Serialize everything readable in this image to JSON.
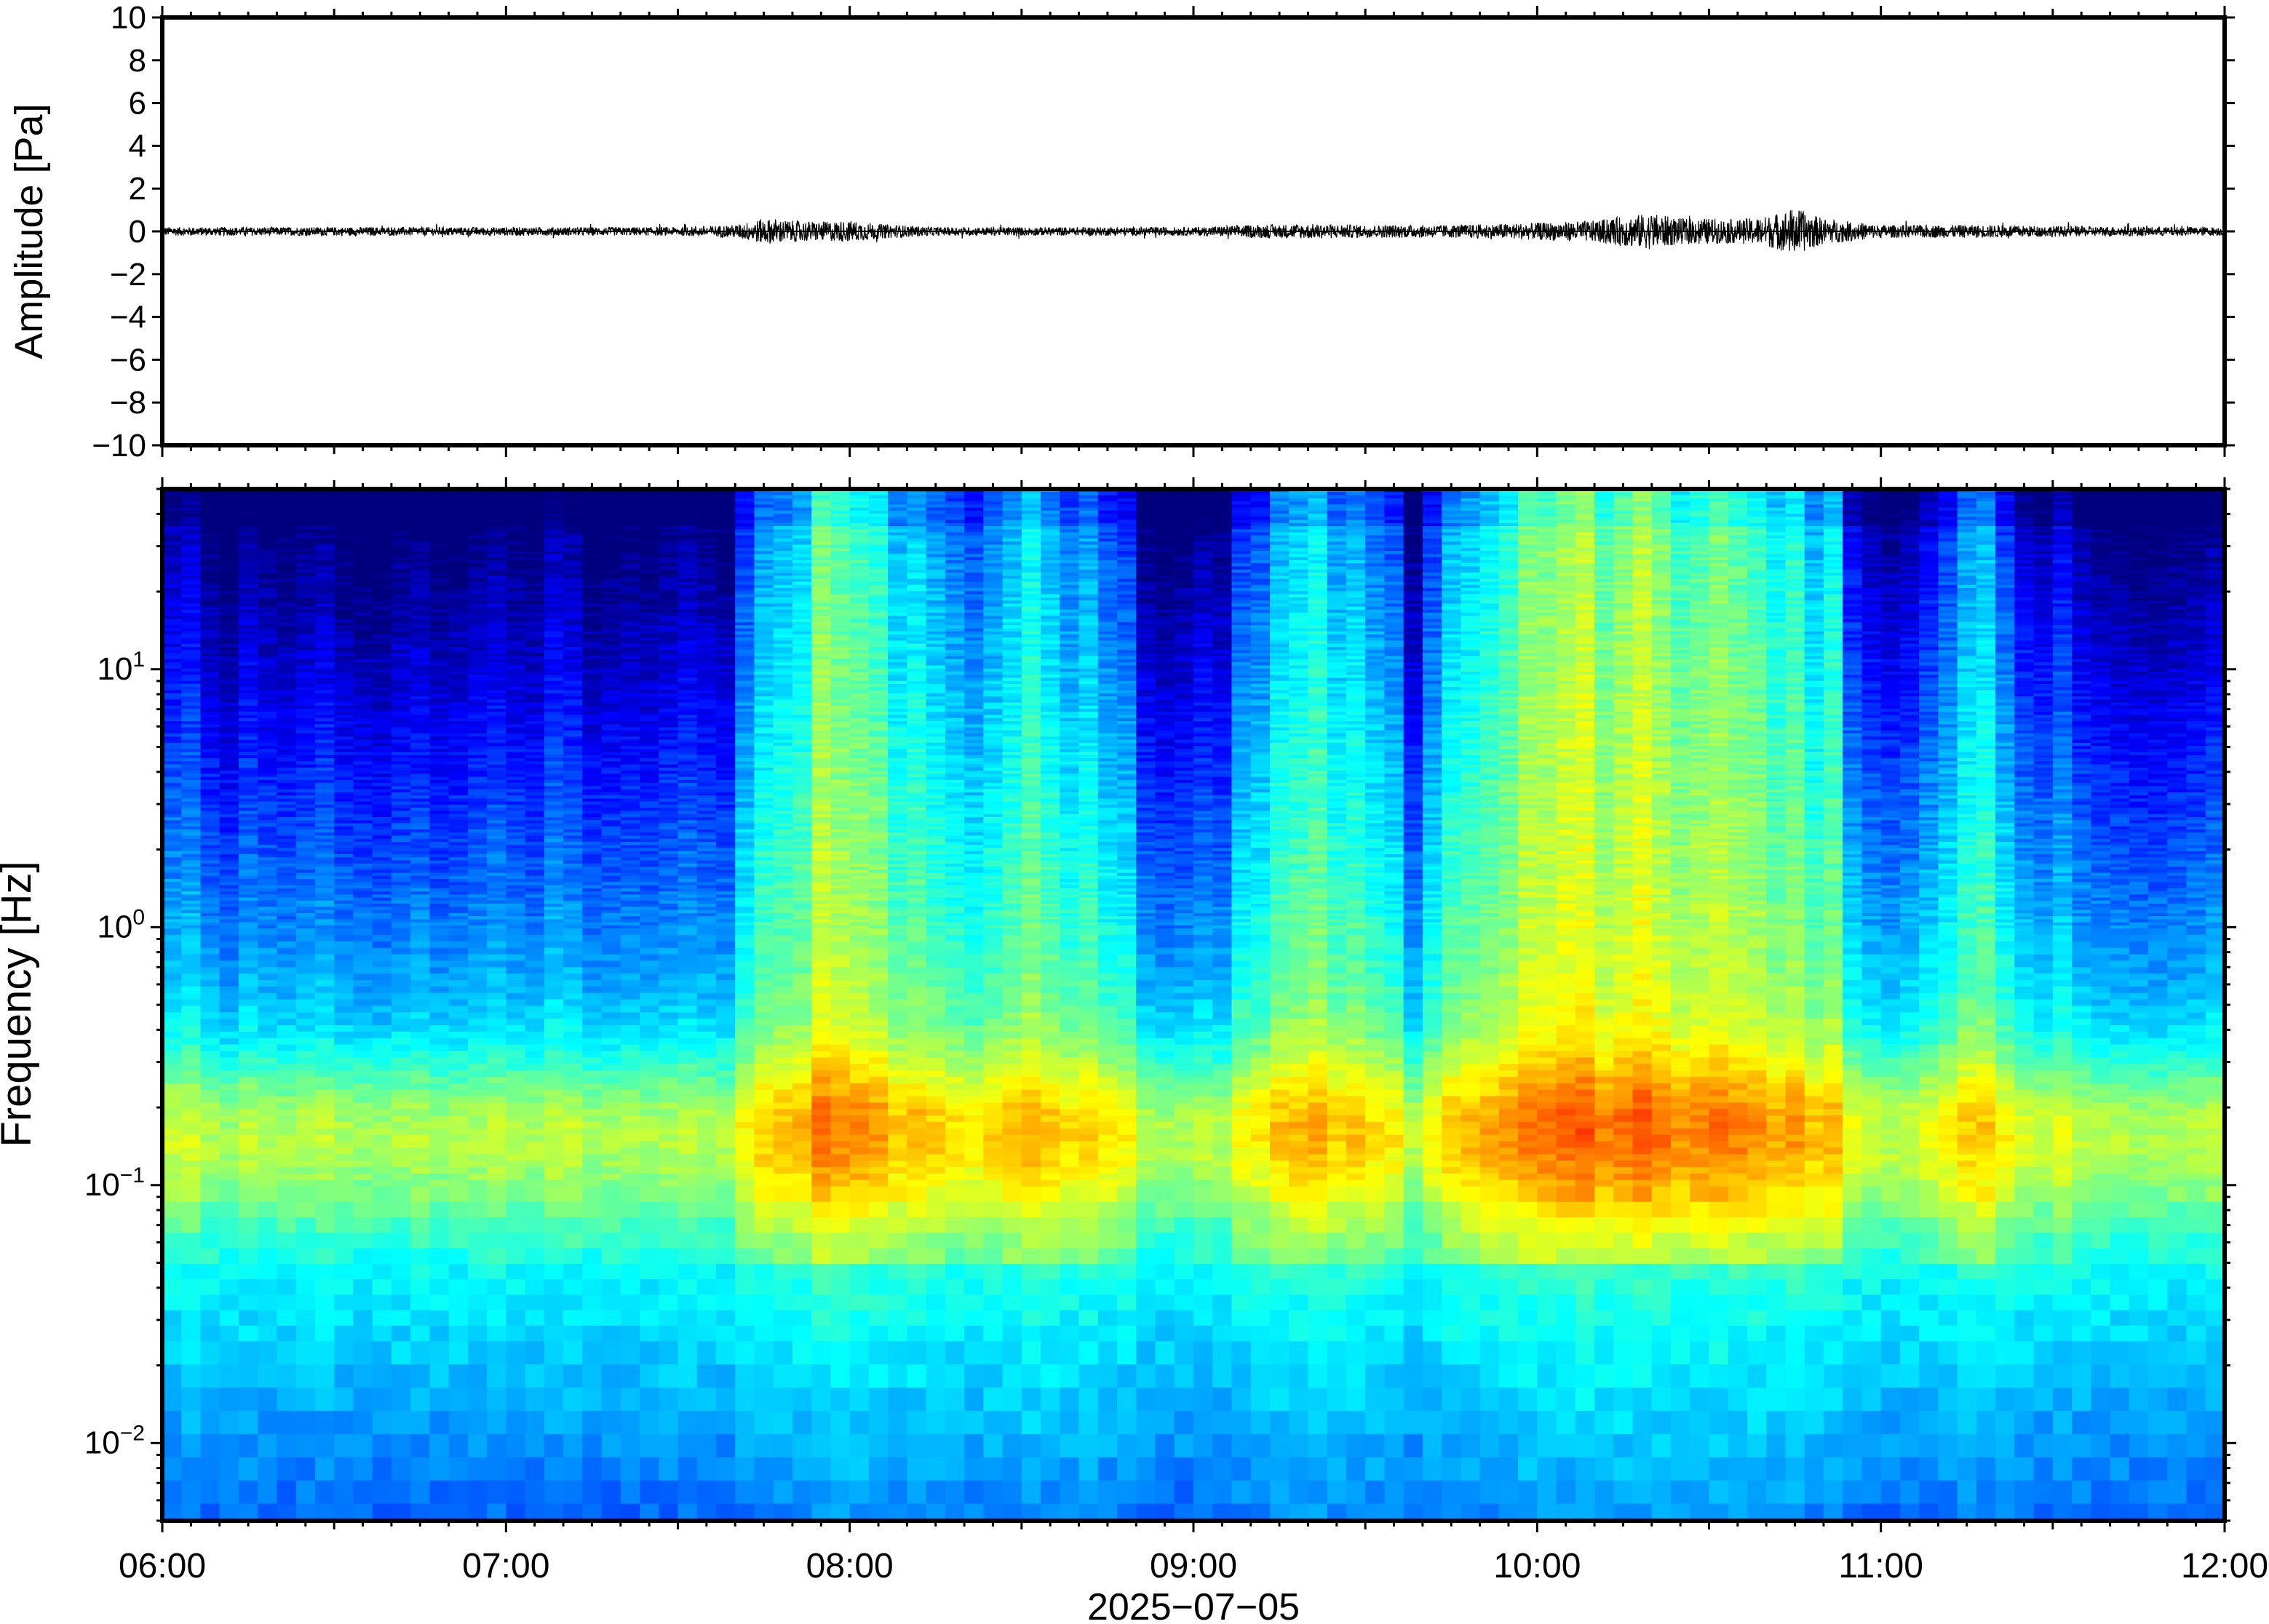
{
  "chart_data": [
    {
      "type": "line",
      "ylabel": "Amplitude [Pa]",
      "ylim": [
        -10,
        10
      ],
      "yticks": [
        10,
        8,
        6,
        4,
        2,
        0,
        -2,
        -4,
        -6,
        -8,
        -10
      ],
      "ytick_labels": [
        "10",
        "8",
        "6",
        "4",
        "2",
        "0",
        "−2",
        "−4",
        "−6",
        "−8",
        "−10"
      ],
      "xlim": [
        "06:00",
        "12:00"
      ],
      "grid": false,
      "series": [
        {
          "x": [
            "06:00",
            "06:30",
            "07:00",
            "07:30",
            "07:40",
            "07:45",
            "07:50",
            "07:55",
            "08:00",
            "08:05",
            "08:15",
            "08:30",
            "09:00",
            "09:10",
            "09:20",
            "09:30",
            "09:45",
            "10:00",
            "10:05",
            "10:10",
            "10:15",
            "10:20",
            "10:25",
            "10:30",
            "10:35",
            "10:40",
            "10:45",
            "10:50",
            "11:00",
            "11:20",
            "11:30",
            "12:00"
          ],
          "y_envelope": [
            0.2,
            0.2,
            0.2,
            0.2,
            0.3,
            0.6,
            0.5,
            0.45,
            0.5,
            0.35,
            0.2,
            0.2,
            0.2,
            0.3,
            0.35,
            0.3,
            0.3,
            0.4,
            0.45,
            0.5,
            0.7,
            0.85,
            0.6,
            0.6,
            0.55,
            0.7,
            1.1,
            0.6,
            0.3,
            0.3,
            0.25,
            0.2
          ]
        }
      ]
    },
    {
      "type": "heatmap",
      "ylabel": "Frequency [Hz]",
      "yscale": "log",
      "ylim": [
        0.005,
        50
      ],
      "yticks": [
        0.01,
        0.1,
        1,
        10
      ],
      "ytick_labels": [
        {
          "base": "10",
          "exp": "−2"
        },
        {
          "base": "10",
          "exp": "−1"
        },
        {
          "base": "10",
          "exp": "0"
        },
        {
          "base": "10",
          "exp": "1"
        }
      ],
      "xlabel": "2025−07−05",
      "xlim": [
        "06:00",
        "12:00"
      ],
      "xticks": [
        "06:00",
        "07:00",
        "08:00",
        "09:00",
        "10:00",
        "11:00",
        "12:00"
      ],
      "colormap": "jet",
      "colors": [
        "#00007f",
        "#0000ff",
        "#0080ff",
        "#00ffff",
        "#80ff80",
        "#ffff00",
        "#ff8000",
        "#ff0000"
      ],
      "column_energy_profile": [
        0.1,
        0.12,
        0.05,
        0.02,
        0.08,
        0.05,
        0.04,
        0.06,
        0.08,
        0.04,
        0.03,
        0.02,
        0.05,
        0.06,
        0.03,
        0.04,
        0.06,
        0.08,
        0.05,
        0.04,
        0.1,
        0.08,
        0.03,
        0.04,
        0.05,
        0.04,
        0.06,
        0.08,
        0.06,
        0.05,
        0.2,
        0.28,
        0.3,
        0.32,
        0.45,
        0.42,
        0.4,
        0.38,
        0.3,
        0.32,
        0.28,
        0.25,
        0.22,
        0.26,
        0.3,
        0.35,
        0.3,
        0.25,
        0.28,
        0.22,
        0.2,
        0.06,
        0.04,
        0.05,
        0.08,
        0.06,
        0.2,
        0.22,
        0.3,
        0.32,
        0.35,
        0.28,
        0.3,
        0.25,
        0.22,
        0.06,
        0.2,
        0.3,
        0.32,
        0.35,
        0.38,
        0.45,
        0.45,
        0.48,
        0.5,
        0.42,
        0.46,
        0.5,
        0.45,
        0.4,
        0.42,
        0.45,
        0.42,
        0.4,
        0.35,
        0.38,
        0.3,
        0.35,
        0.15,
        0.1,
        0.08,
        0.1,
        0.15,
        0.2,
        0.28,
        0.3,
        0.2,
        0.12,
        0.1,
        0.15,
        0.08,
        0.06,
        0.05,
        0.04,
        0.04,
        0.05,
        0.06,
        0.08
      ],
      "noise_feature_hz": 0.17
    }
  ]
}
